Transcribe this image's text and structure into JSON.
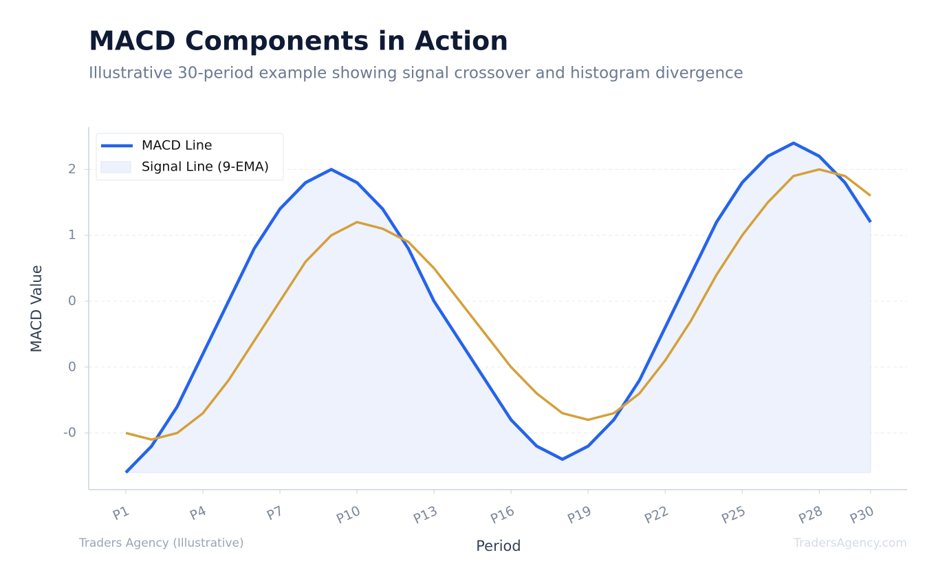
{
  "chart_data": {
    "type": "line",
    "title": "MACD Components in Action",
    "subtitle": "Illustrative 30-period example showing signal crossover and histogram divergence",
    "x_label": "Period",
    "y_label": "MACD Value",
    "source": "Traders Agency (Illustrative)",
    "watermark": "TradersAgency.com",
    "categories": [
      "P1",
      null,
      null,
      "P4",
      null,
      null,
      "P7",
      null,
      null,
      "P10",
      null,
      null,
      "P13",
      null,
      null,
      "P16",
      null,
      null,
      "P19",
      null,
      null,
      "P22",
      null,
      null,
      "P25",
      null,
      null,
      "P28",
      null,
      "P30"
    ],
    "series": [
      {
        "name": "MACD Line",
        "color": "#2563eb",
        "fill": "#eef2fc",
        "values": [
          -0.8,
          -0.6,
          -0.3,
          0.1,
          0.5,
          0.9,
          1.2,
          1.4,
          1.5,
          1.4,
          1.2,
          0.9,
          0.5,
          0.2,
          -0.1,
          -0.4,
          -0.6,
          -0.7,
          -0.6,
          -0.4,
          -0.1,
          0.3,
          0.7,
          1.1,
          1.4,
          1.6,
          1.7,
          1.6,
          1.4,
          1.1
        ]
      },
      {
        "name": "Signal Line (9-EMA)",
        "color": "#d4a03a",
        "values": [
          -0.5,
          -0.55,
          -0.5,
          -0.35,
          -0.1,
          0.2,
          0.5,
          0.8,
          1.0,
          1.1,
          1.05,
          0.95,
          0.75,
          0.5,
          0.25,
          0.0,
          -0.2,
          -0.35,
          -0.4,
          -0.35,
          -0.2,
          0.05,
          0.35,
          0.7,
          1.0,
          1.25,
          1.45,
          1.5,
          1.45,
          1.3
        ]
      }
    ],
    "ylim": [
      -0.93,
      1.82
    ],
    "yticks": [
      {
        "value": 1.5,
        "label": "2"
      },
      1,
      {
        "value": 0.5,
        "label": "0"
      },
      0,
      {
        "value": -0.5,
        "label": "-0"
      }
    ],
    "grid": true,
    "legend": "top-left"
  }
}
